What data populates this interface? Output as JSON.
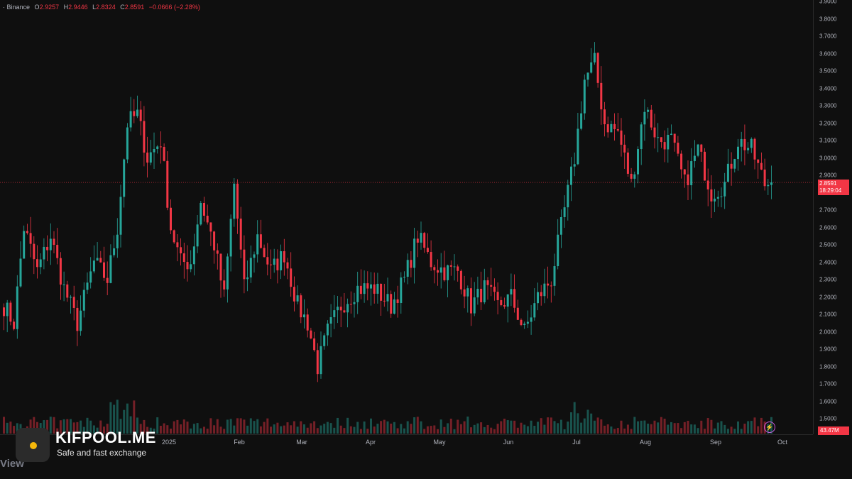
{
  "legend": {
    "symbol": "· Binance",
    "open_label": "O",
    "open_value": "2.9257",
    "high_label": "H",
    "high_value": "2.9446",
    "low_label": "L",
    "low_value": "2.8324",
    "close_label": "C",
    "close_value": "2.8591",
    "change_value": "−0.0666 (−2.28%)"
  },
  "price_tag": {
    "price": "2.8591",
    "countdown": "18:29:04"
  },
  "volume_tag": "43.47M",
  "bottom_text": "View",
  "watermark": {
    "title": "KIFPOOL.ME",
    "subtitle": "Safe and fast exchange"
  },
  "colors": {
    "up": "#26a69a",
    "down": "#f23645",
    "background": "#0f0f0f"
  },
  "chart_data": {
    "type": "candlestick",
    "price_ticks": [
      "3.9000",
      "3.8000",
      "3.7000",
      "3.6000",
      "3.5000",
      "3.4000",
      "3.3000",
      "3.2000",
      "3.1000",
      "3.0000",
      "2.9000",
      "2.8000",
      "2.7000",
      "2.6000",
      "2.5000",
      "2.4000",
      "2.3000",
      "2.2000",
      "2.1000",
      "2.0000",
      "1.9000",
      "1.8000",
      "1.7000",
      "1.6000",
      "1.5000"
    ],
    "x_labels": [
      "2025",
      "Feb",
      "Mar",
      "Apr",
      "May",
      "Jun",
      "Jul",
      "Aug",
      "Sep",
      "Oct"
    ],
    "ylim": [
      1.45,
      3.9
    ],
    "current_price": 2.8591,
    "closes_anchors": [
      {
        "t": 0,
        "c": 2.15
      },
      {
        "t": 3,
        "c": 2.05
      },
      {
        "t": 6,
        "c": 2.6
      },
      {
        "t": 10,
        "c": 2.35
      },
      {
        "t": 14,
        "c": 2.55
      },
      {
        "t": 18,
        "c": 2.25
      },
      {
        "t": 22,
        "c": 2.05
      },
      {
        "t": 27,
        "c": 2.4
      },
      {
        "t": 31,
        "c": 2.3
      },
      {
        "t": 34,
        "c": 2.6
      },
      {
        "t": 37,
        "c": 3.2
      },
      {
        "t": 40,
        "c": 3.25
      },
      {
        "t": 43,
        "c": 3.0
      },
      {
        "t": 47,
        "c": 3.1
      },
      {
        "t": 50,
        "c": 2.6
      },
      {
        "t": 53,
        "c": 2.4
      },
      {
        "t": 56,
        "c": 2.4
      },
      {
        "t": 59,
        "c": 2.75
      },
      {
        "t": 63,
        "c": 2.5
      },
      {
        "t": 66,
        "c": 2.2
      },
      {
        "t": 69,
        "c": 2.85
      },
      {
        "t": 72,
        "c": 2.25
      },
      {
        "t": 76,
        "c": 2.55
      },
      {
        "t": 80,
        "c": 2.35
      },
      {
        "t": 84,
        "c": 2.45
      },
      {
        "t": 88,
        "c": 2.15
      },
      {
        "t": 91,
        "c": 2.05
      },
      {
        "t": 94,
        "c": 1.8
      },
      {
        "t": 97,
        "c": 2.0
      },
      {
        "t": 101,
        "c": 2.15
      },
      {
        "t": 106,
        "c": 2.25
      },
      {
        "t": 111,
        "c": 2.25
      },
      {
        "t": 116,
        "c": 2.15
      },
      {
        "t": 120,
        "c": 2.3
      },
      {
        "t": 124,
        "c": 2.55
      },
      {
        "t": 128,
        "c": 2.4
      },
      {
        "t": 132,
        "c": 2.35
      },
      {
        "t": 136,
        "c": 2.35
      },
      {
        "t": 140,
        "c": 2.15
      },
      {
        "t": 144,
        "c": 2.25
      },
      {
        "t": 148,
        "c": 2.15
      },
      {
        "t": 152,
        "c": 2.2
      },
      {
        "t": 156,
        "c": 2.0
      },
      {
        "t": 160,
        "c": 2.2
      },
      {
        "t": 164,
        "c": 2.3
      },
      {
        "t": 168,
        "c": 2.7
      },
      {
        "t": 171,
        "c": 3.0
      },
      {
        "t": 174,
        "c": 3.45
      },
      {
        "t": 177,
        "c": 3.55
      },
      {
        "t": 180,
        "c": 3.2
      },
      {
        "t": 184,
        "c": 3.15
      },
      {
        "t": 188,
        "c": 2.85
      },
      {
        "t": 192,
        "c": 3.3
      },
      {
        "t": 196,
        "c": 3.1
      },
      {
        "t": 200,
        "c": 3.1
      },
      {
        "t": 204,
        "c": 2.85
      },
      {
        "t": 208,
        "c": 3.05
      },
      {
        "t": 212,
        "c": 2.8
      },
      {
        "t": 216,
        "c": 2.85
      },
      {
        "t": 220,
        "c": 3.1
      },
      {
        "t": 224,
        "c": 3.05
      },
      {
        "t": 228,
        "c": 2.85
      },
      {
        "t": 230,
        "c": 2.8591
      }
    ]
  }
}
